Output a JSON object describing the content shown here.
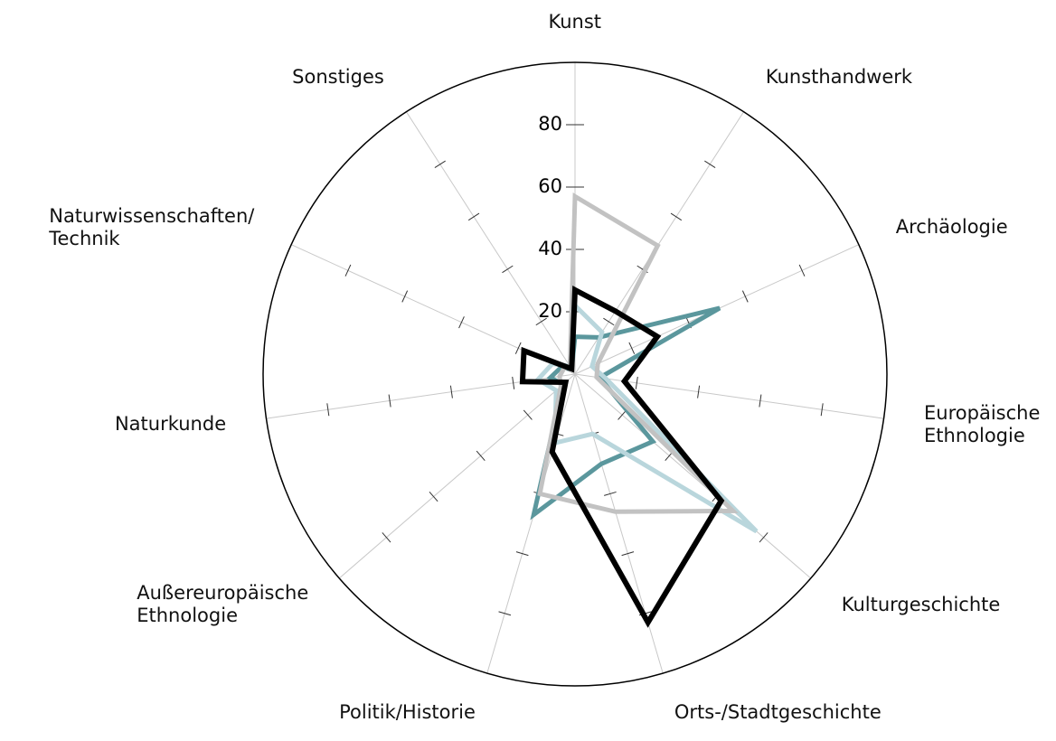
{
  "chart_data": {
    "type": "radar",
    "categories": [
      "Kunst",
      "Kunsthandwerk",
      "Archäologie",
      "Europäische\nEthnologie",
      "Kulturgeschichte",
      "Orts-/Stadtgeschichte",
      "Politik/Historie",
      "Außereuropäische\nEthnologie",
      "Naturkunde",
      "Naturwissenschaften/\nTechnik",
      "Sonstiges"
    ],
    "series": [
      {
        "color": "#5b979d",
        "values": [
          12,
          14,
          51,
          8,
          33,
          30,
          47,
          5,
          8,
          5,
          2
        ]
      },
      {
        "color": "#b9d6dc",
        "values": [
          22,
          16,
          6,
          10,
          77,
          20,
          23,
          8,
          12,
          8,
          3
        ]
      },
      {
        "color": "#c2c2c2",
        "values": [
          57,
          49,
          8,
          7,
          67,
          46,
          40,
          6,
          5,
          4,
          3
        ]
      },
      {
        "color": "#000000",
        "values": [
          27,
          24,
          29,
          16,
          62,
          83,
          26,
          4,
          17,
          18,
          2
        ]
      }
    ],
    "ylim": [
      0,
      100
    ],
    "yticks": [
      20,
      40,
      60,
      80
    ],
    "grid": true
  }
}
